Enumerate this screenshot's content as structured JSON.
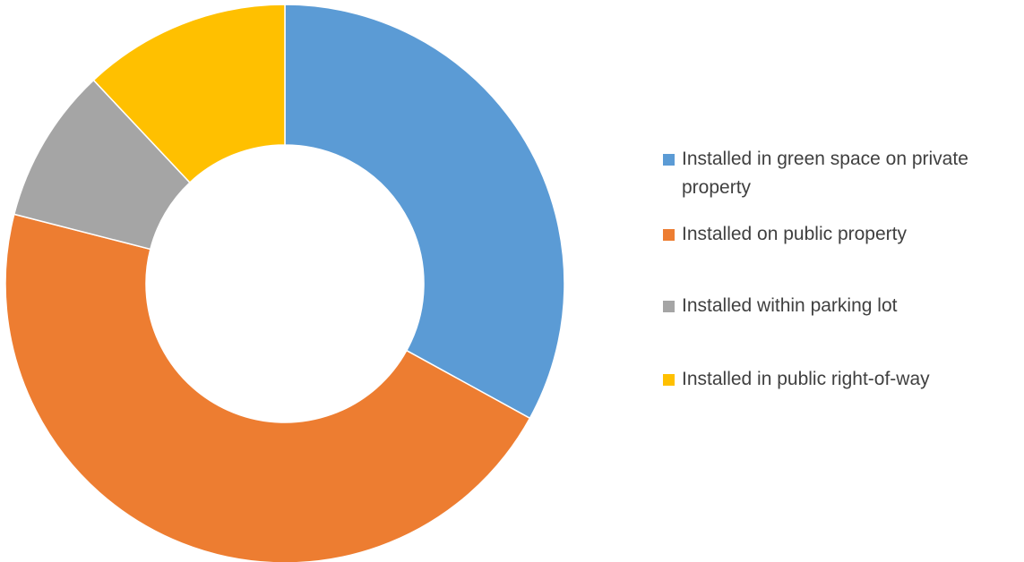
{
  "chart_data": {
    "type": "pie",
    "variant": "donut",
    "title": "",
    "labels": [
      "Installed in green space on private property",
      "Installed on public property",
      "Installed within parking lot",
      "Installed in public right-of-way"
    ],
    "values": [
      33,
      46,
      9,
      12
    ],
    "unit": "%",
    "colors": [
      "#5B9BD5",
      "#ED7D31",
      "#A5A5A5",
      "#FFC000"
    ],
    "start_angle": "12 o'clock",
    "direction": "clockwise",
    "legend_placement": "right"
  }
}
